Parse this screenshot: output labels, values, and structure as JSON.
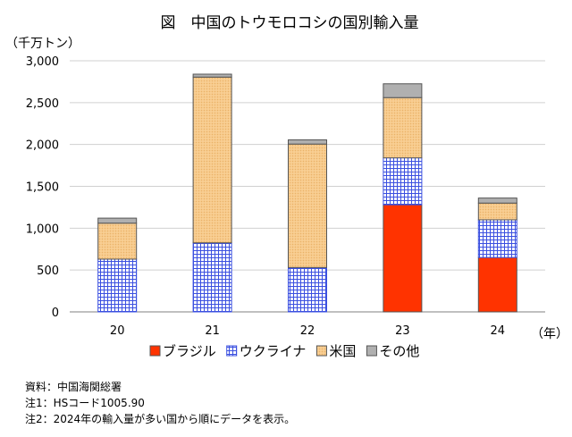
{
  "chart_data": {
    "type": "bar",
    "stacked": true,
    "title": "図　中国のトウモロコシの国別輸入量",
    "ylabel": "（千万トン）",
    "xlabel": "（年）",
    "categories": [
      "20",
      "21",
      "22",
      "23",
      "24"
    ],
    "ylim": [
      0,
      3000
    ],
    "yticks": [
      0,
      500,
      1000,
      1500,
      2000,
      2500,
      3000
    ],
    "ytick_labels": [
      "0",
      "500",
      "1,000",
      "1,500",
      "2,000",
      "2,500",
      "3,000"
    ],
    "grid": true,
    "legend_position": "bottom",
    "series": [
      {
        "name": "ブラジル",
        "values": [
          0,
          0,
          0,
          1280,
          650
        ],
        "color": "#ff3300",
        "pattern": "solid"
      },
      {
        "name": "ウクライナ",
        "values": [
          630,
          825,
          530,
          560,
          450
        ],
        "color": "#3b50e0",
        "pattern": "grid"
      },
      {
        "name": "米国",
        "values": [
          430,
          1980,
          1475,
          720,
          200
        ],
        "color": "#f8c987",
        "pattern": "dots"
      },
      {
        "name": "その他",
        "values": [
          60,
          35,
          50,
          165,
          60
        ],
        "color": "#b0b0b0",
        "pattern": "solid"
      }
    ]
  },
  "notes": {
    "source": "資料：中国海関総署",
    "note1": "注1：HSコード1005.90",
    "note2": "注2：2024年の輸入量が多い国から順にデータを表示。"
  }
}
